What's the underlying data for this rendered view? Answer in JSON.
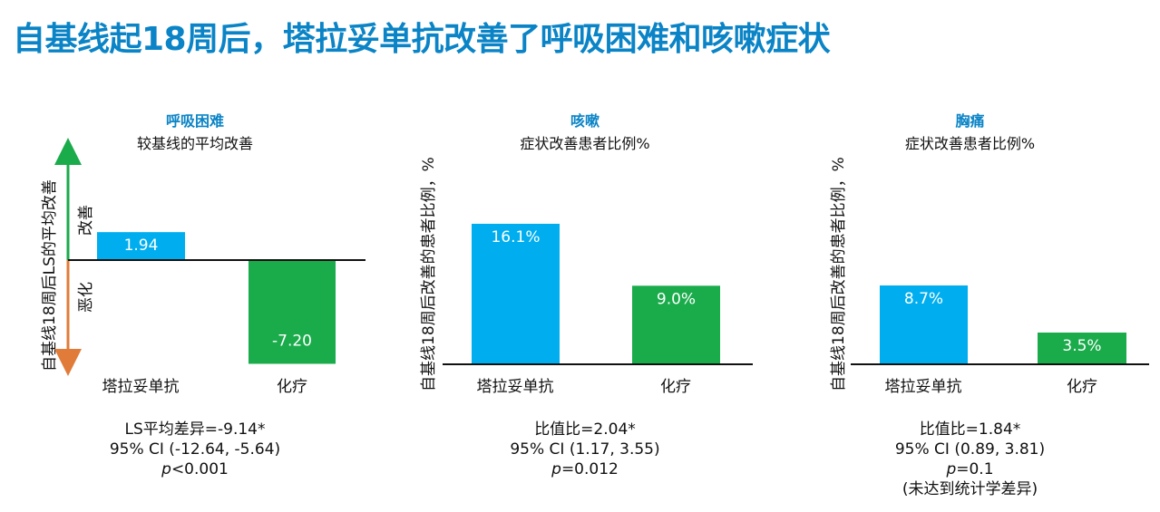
{
  "header": {
    "title": "自基线起18周后，塔拉妥单抗改善了呼吸困难和咳嗽症状"
  },
  "colors": {
    "title": "#0a84c6",
    "tarlatamab": "#00aeef",
    "chemo": "#1aab4b",
    "improve_arrow": "#1aab4b",
    "worsen_arrow": "#e07b39"
  },
  "panels": [
    {
      "title": "呼吸困难",
      "subtitle": "较基线的平均改善",
      "ylabel": "自基线18周后LS的平均改善",
      "improve_label": "改善",
      "worsen_label": "恶化",
      "stats": {
        "line1": "LS平均差异=-9.14*",
        "line2": "95% CI (-12.64, -5.64)",
        "p_label": "p",
        "p_value": "<0.001"
      }
    },
    {
      "title": "咳嗽",
      "subtitle": "症状改善患者比例%",
      "ylabel": "自基线18周后改善的患者比例，%",
      "stats": {
        "line1": "比值比=2.04*",
        "line2": "95% CI (1.17, 3.55)",
        "p_label": "p",
        "p_value": "=0.012"
      }
    },
    {
      "title": "胸痛",
      "subtitle": "症状改善患者比例%",
      "ylabel": "自基线18周后改善的患者比例，%",
      "stats": {
        "line1": "比值比=1.84*",
        "line2": "95% CI (0.89, 3.81)",
        "p_label": "p",
        "p_value": "=0.1",
        "line4": "(未达到统计学差异)"
      }
    }
  ],
  "chart_data": [
    {
      "type": "bar",
      "title": "呼吸困难",
      "subtitle": "较基线的平均改善",
      "ylabel": "自基线18周后LS的平均改善",
      "categories": [
        "塔拉妥单抗",
        "化疗"
      ],
      "values": [
        1.94,
        -7.2
      ],
      "data_labels": [
        "1.94",
        "-7.20"
      ],
      "ylim": [
        -8.0,
        2.0
      ],
      "grid": false
    },
    {
      "type": "bar",
      "title": "咳嗽",
      "subtitle": "症状改善患者比例%",
      "ylabel": "自基线18周后改善的患者比例，%",
      "categories": [
        "塔拉妥单抗",
        "化疗"
      ],
      "values": [
        16.1,
        9.0
      ],
      "data_labels": [
        "16.1%",
        "9.0%"
      ],
      "ylim": [
        0,
        22
      ],
      "grid": false
    },
    {
      "type": "bar",
      "title": "胸痛",
      "subtitle": "症状改善患者比例%",
      "ylabel": "自基线18周后改善的患者比例，%",
      "categories": [
        "塔拉妥单抗",
        "化疗"
      ],
      "values": [
        8.7,
        3.5
      ],
      "data_labels": [
        "8.7%",
        "3.5%"
      ],
      "ylim": [
        0,
        22
      ],
      "grid": false
    }
  ]
}
